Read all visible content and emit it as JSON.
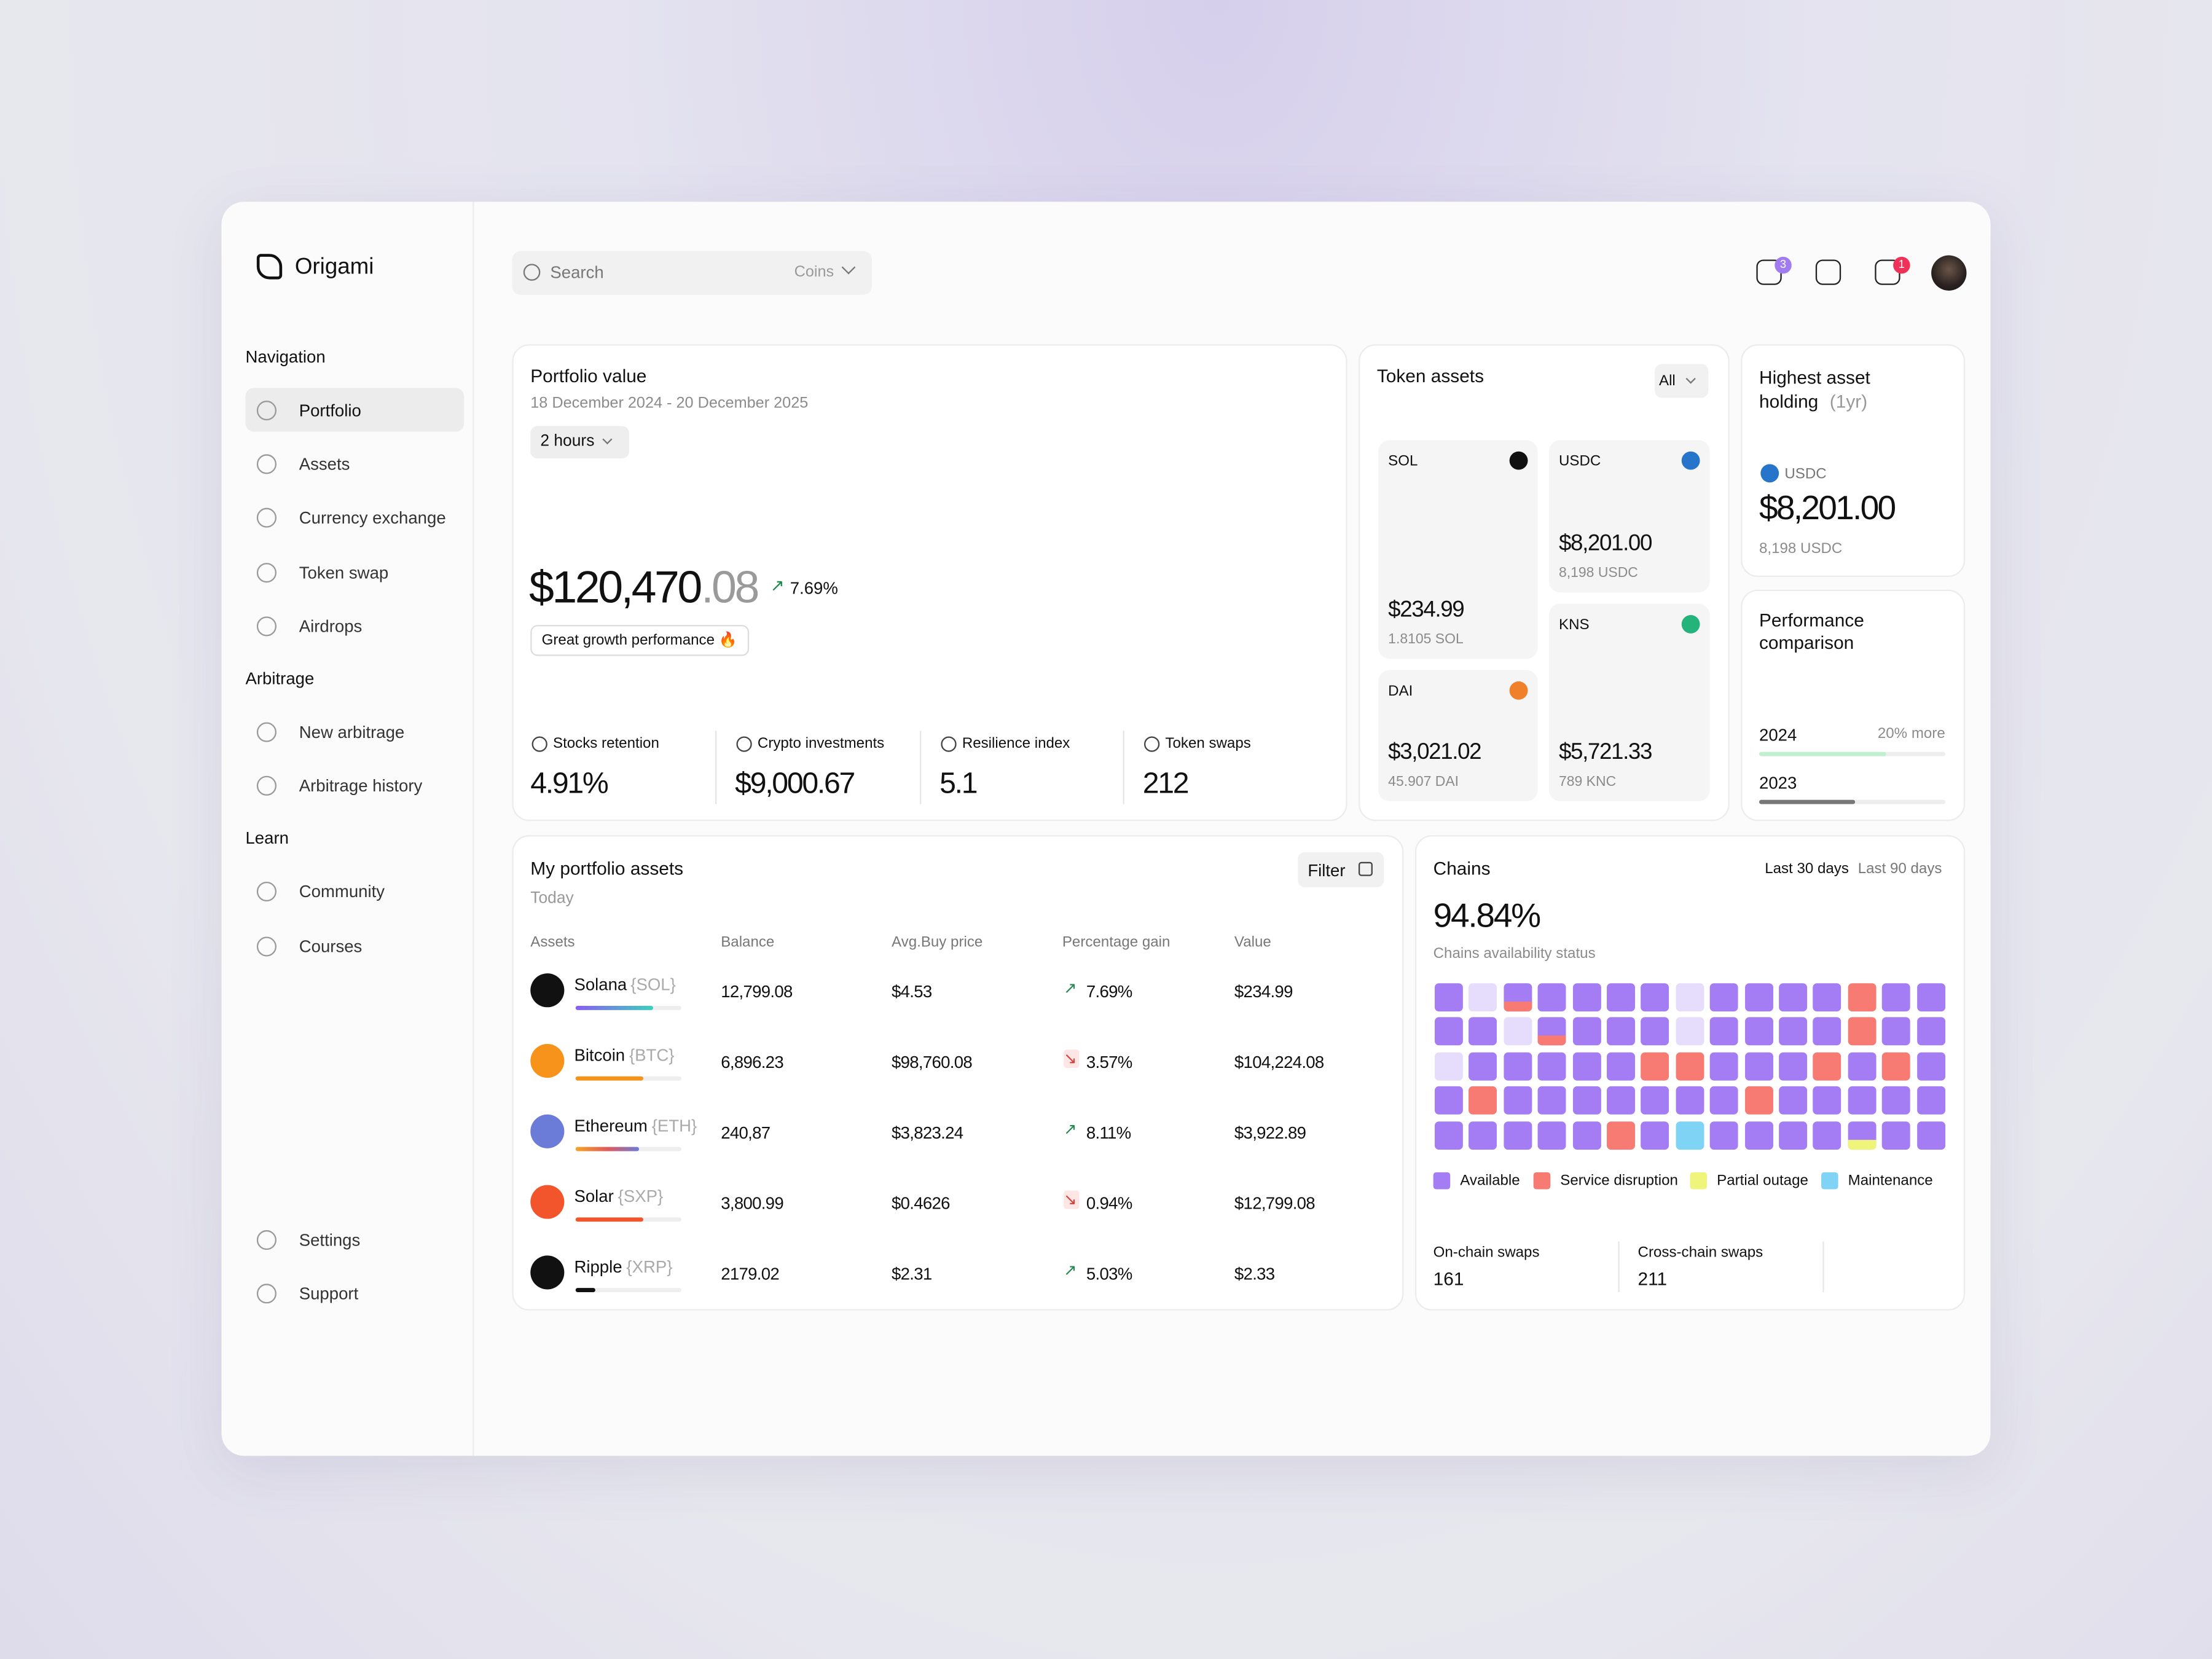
{
  "brand": "Origami",
  "search": {
    "placeholder": "Search",
    "filter": "Coins"
  },
  "badges": {
    "messages": "3",
    "notifications": "1"
  },
  "nav": [
    {
      "heading": "Navigation",
      "items": [
        "Portfolio",
        "Assets",
        "Currency exchange",
        "Token swap",
        "Airdrops"
      ]
    },
    {
      "heading": "Arbitrage",
      "items": [
        "New arbitrage",
        "Arbitrage history"
      ]
    },
    {
      "heading": "Learn",
      "items": [
        "Community",
        "Courses"
      ]
    }
  ],
  "footer_nav": [
    "Settings",
    "Support"
  ],
  "portfolio": {
    "title": "Portfolio value",
    "date_range": "18 December 2024 - 20 December 2025",
    "interval": "2 hours",
    "value_main": "$120,470",
    "value_cents": ".08",
    "change": "7.69%",
    "badge": "Great growth performance 🔥",
    "stats": [
      {
        "label": "Stocks retention",
        "value": "4.91%"
      },
      {
        "label": "Crypto investments",
        "value": "$9,000.67"
      },
      {
        "label": "Resilience index",
        "value": "5.1"
      },
      {
        "label": "Token swaps",
        "value": "212"
      }
    ]
  },
  "token_assets": {
    "title": "Token assets",
    "filter": "All",
    "tokens": [
      {
        "symbol": "SOL",
        "value": "$234.99",
        "amount": "1.8105 SOL"
      },
      {
        "symbol": "USDC",
        "value": "$8,201.00",
        "amount": "8,198 USDC"
      },
      {
        "symbol": "DAI",
        "value": "$3,021.02",
        "amount": "45.907 DAI"
      },
      {
        "symbol": "KNS",
        "value": "$5,721.33",
        "amount": "789 KNC"
      }
    ]
  },
  "highest": {
    "title": "Highest asset holding",
    "period": "(1yr)",
    "symbol": "USDC",
    "value": "$8,201.00",
    "amount": "8,198 USDC"
  },
  "performance": {
    "title": "Performance comparison",
    "current": "2024",
    "delta": "20% more",
    "previous": "2023"
  },
  "assets_table": {
    "title": "My portfolio assets",
    "subtitle": "Today",
    "filter": "Filter",
    "columns": [
      "Assets",
      "Balance",
      "Avg.Buy price",
      "Percentage gain",
      "Value"
    ],
    "rows": [
      [
        "Solana",
        "{SOL}",
        "12,799.08",
        "$4.53",
        "7.69%",
        "$234.99"
      ],
      [
        "Bitcoin",
        "{BTC}",
        "6,896.23",
        "$98,760.08",
        "3.57%",
        "$104,224.08"
      ],
      [
        "Ethereum",
        "{ETH}",
        "240,87",
        "$3,823.24",
        "8.11%",
        "$3,922.89"
      ],
      [
        "Solar",
        "{SXP}",
        "3,800.99",
        "$0.4626",
        "0.94%",
        "$12,799.08"
      ],
      [
        "Ripple",
        "{XRP}",
        "2179.02",
        "$2.31",
        "5.03%",
        "$2.33"
      ]
    ]
  },
  "chains": {
    "title": "Chains",
    "ranges": [
      "Last 30 days",
      "Last 90 days"
    ],
    "value": "94.84%",
    "subtitle": "Chains availability status",
    "legend": [
      "Available",
      "Service disruption",
      "Partial outage",
      "Maintenance"
    ],
    "stats": [
      {
        "label": "On-chain swaps",
        "value": "161"
      },
      {
        "label": "Cross-chain swaps",
        "value": "211"
      }
    ]
  }
}
